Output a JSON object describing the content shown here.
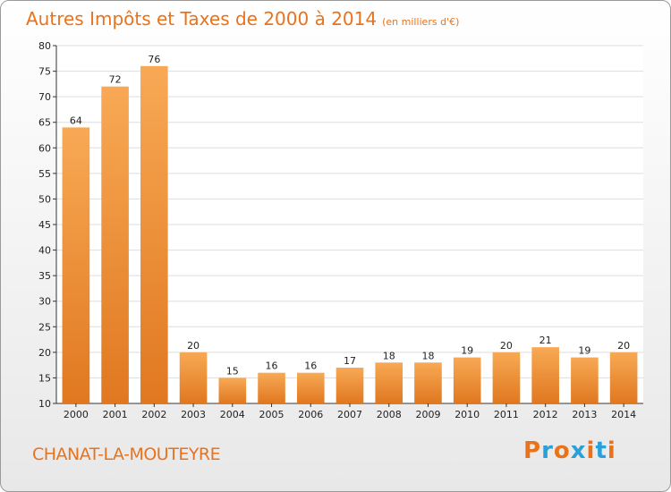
{
  "header": {
    "title": "Autres Impôts et Taxes de 2000 à 2014",
    "unit": "(en milliers d'€)"
  },
  "footer": {
    "commune": "CHANAT-LA-MOUTEYRE",
    "brand": "Proxiti"
  },
  "colors": {
    "bar_top": "#f8a955",
    "bar_bottom": "#e07820",
    "title": "#e8731c",
    "brand_letters": [
      "#e8731c",
      "#2aa0d8",
      "#e8731c",
      "#2aa0d8",
      "#e8731c",
      "#2aa0d8",
      "#e8731c"
    ]
  },
  "chart_data": {
    "type": "bar",
    "categories": [
      "2000",
      "2001",
      "2002",
      "2003",
      "2004",
      "2005",
      "2006",
      "2007",
      "2008",
      "2009",
      "2010",
      "2011",
      "2012",
      "2013",
      "2014"
    ],
    "values": [
      64,
      72,
      76,
      20,
      15,
      16,
      16,
      17,
      18,
      18,
      19,
      20,
      21,
      19,
      20
    ],
    "title": "Autres Impôts et Taxes de 2000 à 2014",
    "xlabel": "",
    "ylabel": "",
    "ylim": [
      10,
      80
    ],
    "yticks": [
      10,
      15,
      20,
      25,
      30,
      35,
      40,
      45,
      50,
      55,
      60,
      65,
      70,
      75,
      80
    ],
    "grid": true,
    "data_labels": true
  }
}
